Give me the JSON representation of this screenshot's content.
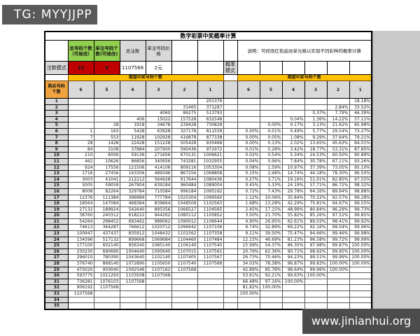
{
  "banners": {
    "top": "TG: MYYJJPP",
    "bottom": "www.jinianhui.org"
  },
  "title": "数字彩票中奖概率计算",
  "note": "说明：可修改红色底纹单元格以实现不同彩种的概率计算",
  "config": {
    "row_label": "注数模式",
    "prob_label": "概率模式",
    "headers": {
      "total_numbers": "总号码个数（可修改）",
      "per_bet_numbers": "单注号码个数(可修改)",
      "total_bets": "总注数",
      "price": "单注号码价格"
    },
    "values": {
      "total_numbers": "33",
      "per_bet_numbers": "6",
      "total_bets": "1107568",
      "price": "2元"
    }
  },
  "band_label": "期望中奖号码个数",
  "row_header_label": "购买号码个数",
  "column_headers": [
    "6",
    "5",
    "4",
    "3",
    "2",
    "1"
  ],
  "colors": {
    "green_header": "#92d050",
    "red_editable": "#c00000",
    "orange_band": "#ffc000",
    "row_header_orange": "#efa23d",
    "gray_header": "#d9d9d9",
    "banner_bg": "#595959"
  },
  "rows": [
    {
      "n": "1",
      "counts": [
        "",
        "",
        "",
        "",
        "",
        "201376"
      ],
      "percents": [
        "",
        "",
        "",
        "",
        "",
        "18.18%"
      ]
    },
    {
      "n": "2",
      "counts": [
        "",
        "",
        "",
        "",
        "31465",
        "371287"
      ],
      "percents": [
        "",
        "",
        "",
        "",
        "2.84%",
        "33.52%"
      ]
    },
    {
      "n": "3",
      "counts": [
        "",
        "",
        "",
        "4060",
        "86275",
        "513793"
      ],
      "percents": [
        "",
        "",
        "",
        "0.37%",
        "7.79%",
        "46.39%"
      ]
    },
    {
      "n": "4",
      "counts": [
        "",
        "",
        "406",
        "15022",
        "157528",
        "632548"
      ],
      "percents": [
        "",
        "",
        "0.04%",
        "1.36%",
        "14.22%",
        "57.11%"
      ]
    },
    {
      "n": "5",
      "counts": [
        "",
        "28",
        "1918",
        "34678",
        "239428",
        "730828"
      ],
      "percents": [
        "",
        "0.00%",
        "0.17%",
        "3.13%",
        "21.62%",
        "65.98%"
      ]
    },
    {
      "n": "6",
      "counts": [
        "1",
        "163",
        "5428",
        "63928",
        "327178",
        "811558"
      ],
      "percents": [
        "0.00%",
        "0.01%",
        "0.49%",
        "5.77%",
        "29.54%",
        "73.27%"
      ]
    },
    {
      "n": "7",
      "counts": [
        "7",
        "553",
        "11928",
        "102928",
        "416878",
        "877338"
      ],
      "percents": [
        "0.00%",
        "0.05%",
        "1.08%",
        "9.29%",
        "37.64%",
        "79.21%"
      ]
    },
    {
      "n": "8",
      "counts": [
        "28",
        "1428",
        "22428",
        "151228",
        "505428",
        "930468"
      ],
      "percents": [
        "0.00%",
        "0.13%",
        "2.02%",
        "13.65%",
        "45.63%",
        "84.01%"
      ]
    },
    {
      "n": "9",
      "counts": [
        "84",
        "3108",
        "37884",
        "207900",
        "590436",
        "972972"
      ],
      "percents": [
        "0.01%",
        "0.28%",
        "3.42%",
        "18.77%",
        "53.31%",
        "87.85%"
      ]
    },
    {
      "n": "10",
      "counts": [
        "210",
        "6006",
        "59136",
        "271656",
        "670131",
        "1006621"
      ],
      "percents": [
        "0.02%",
        "0.54%",
        "5.34%",
        "24.53%",
        "60.50%",
        "90.89%"
      ]
    },
    {
      "n": "11",
      "counts": [
        "462",
        "10626",
        "86856",
        "340956",
        "743281",
        "1032955"
      ],
      "percents": [
        "0.04%",
        "0.96%",
        "7.84%",
        "30.78%",
        "67.11%",
        "93.26%"
      ]
    },
    {
      "n": "12",
      "counts": [
        "924",
        "17556",
        "121506",
        "414106",
        "809116",
        "1053304"
      ],
      "percents": [
        "0.08%",
        "1.59%",
        "10.97%",
        "37.39%",
        "73.05%",
        "95.10%"
      ]
    },
    {
      "n": "13",
      "counts": [
        "1716",
        "27456",
        "163306",
        "489346",
        "867256",
        "1068808"
      ],
      "percents": [
        "0.15%",
        "2.48%",
        "14.74%",
        "44.18%",
        "78.30%",
        "96.50%"
      ]
    },
    {
      "n": "14",
      "counts": [
        "3003",
        "41041",
        "212212",
        "564928",
        "917644",
        "1080436"
      ],
      "percents": [
        "0.27%",
        "3.71%",
        "19.16%",
        "51.01%",
        "82.85%",
        "97.55%"
      ]
    },
    {
      "n": "15",
      "counts": [
        "5005",
        "59059",
        "267904",
        "639184",
        "960484",
        "1089004"
      ],
      "percents": [
        "0.45%",
        "5.33%",
        "24.19%",
        "57.71%",
        "86.72%",
        "98.32%"
      ]
    },
    {
      "n": "16",
      "counts": [
        "8008",
        "82264",
        "329784",
        "710584",
        "996184",
        "1095192"
      ],
      "percents": [
        "0.72%",
        "7.43%",
        "29.78%",
        "64.16%",
        "89.94%",
        "98.88%"
      ]
    },
    {
      "n": "17",
      "counts": [
        "12376",
        "111384",
        "396984",
        "777784",
        "1025304",
        "1099560"
      ],
      "percents": [
        "1.12%",
        "10.06%",
        "35.84%",
        "70.22%",
        "92.57%",
        "99.28%"
      ]
    },
    {
      "n": "18",
      "counts": [
        "18564",
        "147084",
        "468384",
        "839664",
        "1048509",
        "1102563"
      ],
      "percents": [
        "1.68%",
        "13.28%",
        "42.29%",
        "75.81%",
        "94.67%",
        "99.55%"
      ]
    },
    {
      "n": "19",
      "counts": [
        "27132",
        "189924",
        "542640",
        "895356",
        "1066527",
        "1104565"
      ],
      "percents": [
        "2.45%",
        "17.15%",
        "48.99%",
        "80.84%",
        "96.29%",
        "99.73%"
      ]
    },
    {
      "n": "20",
      "counts": [
        "38760",
        "240312",
        "618222",
        "944262",
        "1080112",
        "1105852"
      ],
      "percents": [
        "3.50%",
        "21.70%",
        "55.82%",
        "85.26%",
        "97.52%",
        "99.85%"
      ]
    },
    {
      "n": "21",
      "counts": [
        "54264",
        "298452",
        "693462",
        "986062",
        "1090012",
        "1106644"
      ],
      "percents": [
        "4.90%",
        "26.95%",
        "62.61%",
        "89.03%",
        "98.41%",
        "99.92%"
      ]
    },
    {
      "n": "22",
      "counts": [
        "74613",
        "364287",
        "766612",
        "1020712",
        "1096942",
        "1107106"
      ],
      "percents": [
        "6.74%",
        "32.89%",
        "69.22%",
        "92.16%",
        "99.04%",
        "99.96%"
      ]
    },
    {
      "n": "23",
      "counts": [
        "100947",
        "437437",
        "835912",
        "1048432",
        "1101562",
        "1107358"
      ],
      "percents": [
        "9.11%",
        "39.50%",
        "75.47%",
        "94.66%",
        "99.46%",
        "99.98%"
      ]
    },
    {
      "n": "24",
      "counts": [
        "134596",
        "517132",
        "899668",
        "1069684",
        "1104460",
        "1107484"
      ],
      "percents": [
        "12.15%",
        "46.69%",
        "81.23%",
        "96.58%",
        "99.72%",
        "99.99%"
      ]
    },
    {
      "n": "25",
      "counts": [
        "177100",
        "602140",
        "956340",
        "1085140",
        "1106140",
        "1107540"
      ],
      "percents": [
        "15.99%",
        "54.37%",
        "86.35%",
        "97.98%",
        "99.87%",
        "100.00%"
      ]
    },
    {
      "n": "26",
      "counts": [
        "230230",
        "690690",
        "1004640",
        "1095640",
        "1107015",
        "1107561"
      ],
      "percents": [
        "20.79%",
        "62.36%",
        "90.71%",
        "98.92%",
        "99.95%",
        "100.00%"
      ]
    },
    {
      "n": "27",
      "counts": [
        "296010",
        "780390",
        "1043640",
        "1102140",
        "1107405",
        "1107567"
      ],
      "percents": [
        "26.73%",
        "70.46%",
        "94.23%",
        "99.51%",
        "99.99%",
        "100.00%"
      ]
    },
    {
      "n": "28",
      "counts": [
        "376740",
        "868140",
        "1072890",
        "1105650",
        "1107540",
        "1107568"
      ],
      "percents": [
        "34.02%",
        "78.38%",
        "96.87%",
        "99.83%",
        "100.00%",
        "100.00%"
      ]
    },
    {
      "n": "29",
      "counts": [
        "475020",
        "950040",
        "1092546",
        "1107162",
        "1107568",
        ""
      ],
      "percents": [
        "42.89%",
        "85.78%",
        "98.64%",
        "99.96%",
        "100.00%",
        ""
      ]
    },
    {
      "n": "30",
      "counts": [
        "593775",
        "1021293",
        "1103508",
        "1107568",
        "",
        ""
      ],
      "percents": [
        "53.61%",
        "92.21%",
        "99.63%",
        "100.00%",
        "",
        ""
      ]
    },
    {
      "n": "31",
      "counts": [
        "736281",
        "1076103",
        "1107568",
        "",
        "",
        ""
      ],
      "percents": [
        "66.48%",
        "97.16%",
        "100.00%",
        "",
        "",
        ""
      ]
    },
    {
      "n": "32",
      "counts": [
        "906192",
        "1107568",
        "",
        "",
        "",
        ""
      ],
      "percents": [
        "81.82%",
        "100.00%",
        "",
        "",
        "",
        ""
      ]
    },
    {
      "n": "33",
      "counts": [
        "1107568",
        "",
        "",
        "",
        "",
        ""
      ],
      "percents": [
        "100.00%",
        "",
        "",
        "",
        "",
        ""
      ]
    },
    {
      "n": "34",
      "counts": [
        "",
        "",
        "",
        "",
        "",
        ""
      ],
      "percents": [
        "",
        "",
        "",
        "",
        "",
        ""
      ]
    },
    {
      "n": "35",
      "counts": [
        "",
        "",
        "",
        "",
        "",
        ""
      ],
      "percents": [
        "",
        "",
        "",
        "",
        "",
        ""
      ]
    }
  ]
}
